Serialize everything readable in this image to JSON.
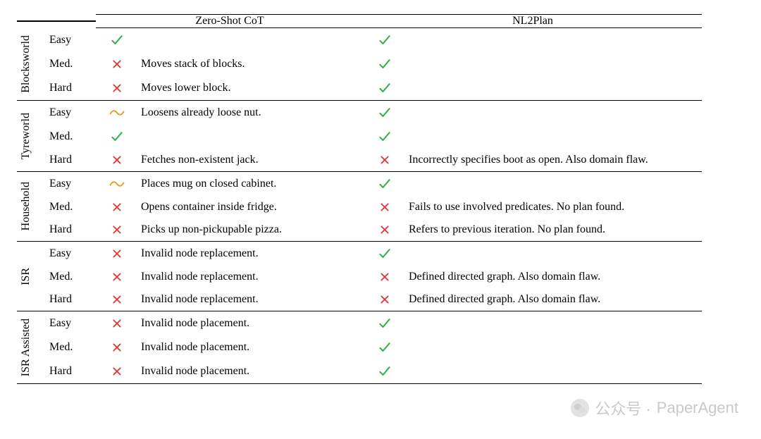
{
  "headers": {
    "col_a": "Zero-Shot CoT",
    "col_b": "NL2Plan"
  },
  "icons": {
    "check_color": "#2fb04a",
    "cross_color": "#e33030",
    "tilde_color": "#e59a1f"
  },
  "watermark": {
    "label_cn": "公众号 ·",
    "label_en": "PaperAgent"
  },
  "groups": [
    {
      "name": "Blocksworld",
      "rows": [
        {
          "difficulty": "Easy",
          "mark_a": "check",
          "note_a": "",
          "mark_b": "check",
          "note_b": ""
        },
        {
          "difficulty": "Med.",
          "mark_a": "cross",
          "note_a": "Moves stack of blocks.",
          "mark_b": "check",
          "note_b": ""
        },
        {
          "difficulty": "Hard",
          "mark_a": "cross",
          "note_a": "Moves lower block.",
          "mark_b": "check",
          "note_b": ""
        }
      ]
    },
    {
      "name": "Tyreworld",
      "rows": [
        {
          "difficulty": "Easy",
          "mark_a": "tilde",
          "note_a": "Loosens already loose nut.",
          "mark_b": "check",
          "note_b": ""
        },
        {
          "difficulty": "Med.",
          "mark_a": "check",
          "note_a": "",
          "mark_b": "check",
          "note_b": ""
        },
        {
          "difficulty": "Hard",
          "mark_a": "cross",
          "note_a": "Fetches non-existent jack.",
          "mark_b": "cross",
          "note_b": "Incorrectly specifies boot as open. Also domain flaw."
        }
      ]
    },
    {
      "name": "Household",
      "rows": [
        {
          "difficulty": "Easy",
          "mark_a": "tilde",
          "note_a": "Places mug on closed cabinet.",
          "mark_b": "check",
          "note_b": ""
        },
        {
          "difficulty": "Med.",
          "mark_a": "cross",
          "note_a": "Opens container inside fridge.",
          "mark_b": "cross",
          "note_b": "Fails to use involved predicates. No plan found."
        },
        {
          "difficulty": "Hard",
          "mark_a": "cross",
          "note_a": "Picks up non-pickupable pizza.",
          "mark_b": "cross",
          "note_b": "Refers to previous iteration. No plan found."
        }
      ]
    },
    {
      "name": "ISR",
      "rows": [
        {
          "difficulty": "Easy",
          "mark_a": "cross",
          "note_a": "Invalid node replacement.",
          "mark_b": "check",
          "note_b": ""
        },
        {
          "difficulty": "Med.",
          "mark_a": "cross",
          "note_a": "Invalid node replacement.",
          "mark_b": "cross",
          "note_b": "Defined directed graph. Also domain flaw."
        },
        {
          "difficulty": "Hard",
          "mark_a": "cross",
          "note_a": "Invalid node replacement.",
          "mark_b": "cross",
          "note_b": "Defined directed graph. Also domain flaw."
        }
      ]
    },
    {
      "name": "ISR Assisted",
      "rows": [
        {
          "difficulty": "Easy",
          "mark_a": "cross",
          "note_a": "Invalid node placement.",
          "mark_b": "check",
          "note_b": ""
        },
        {
          "difficulty": "Med.",
          "mark_a": "cross",
          "note_a": "Invalid node placement.",
          "mark_b": "check",
          "note_b": ""
        },
        {
          "difficulty": "Hard",
          "mark_a": "cross",
          "note_a": "Invalid node placement.",
          "mark_b": "check",
          "note_b": ""
        }
      ]
    }
  ]
}
